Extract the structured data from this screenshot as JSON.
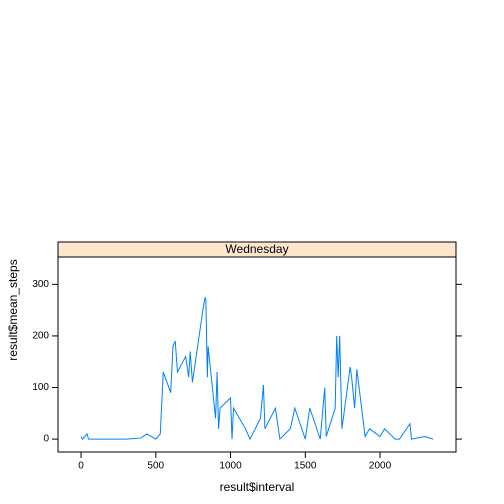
{
  "chart_data": {
    "type": "line",
    "strip": "Wednesday",
    "x_label": "result$interval",
    "y_label": "result$mean_steps",
    "color": "#0080ff",
    "xlim": [
      -154,
      2508
    ],
    "xticks": [
      0,
      500,
      1000,
      1500,
      2000
    ],
    "ylim": [
      -25,
      353
    ],
    "yticks": [
      0,
      100,
      200,
      300
    ],
    "x": [
      0,
      10,
      40,
      50,
      100,
      200,
      300,
      400,
      440,
      500,
      530,
      550,
      600,
      615,
      630,
      645,
      700,
      720,
      730,
      745,
      800,
      815,
      830,
      835,
      845,
      850,
      900,
      910,
      920,
      930,
      1000,
      1010,
      1020,
      1100,
      1130,
      1200,
      1220,
      1230,
      1300,
      1330,
      1400,
      1430,
      1500,
      1530,
      1600,
      1630,
      1640,
      1700,
      1710,
      1720,
      1730,
      1745,
      1800,
      1810,
      1830,
      1845,
      1900,
      1930,
      2000,
      2030,
      2100,
      2130,
      2200,
      2210,
      2300,
      2355
    ],
    "values": [
      5,
      0,
      10,
      0,
      0,
      0,
      0,
      2,
      10,
      0,
      10,
      130,
      90,
      180,
      190,
      130,
      160,
      120,
      170,
      110,
      220,
      250,
      275,
      270,
      120,
      180,
      40,
      130,
      20,
      60,
      80,
      0,
      60,
      20,
      0,
      40,
      105,
      20,
      60,
      0,
      20,
      60,
      0,
      60,
      0,
      100,
      5,
      60,
      200,
      120,
      200,
      20,
      140,
      120,
      60,
      135,
      5,
      20,
      5,
      20,
      0,
      0,
      30,
      0,
      5,
      0
    ]
  }
}
